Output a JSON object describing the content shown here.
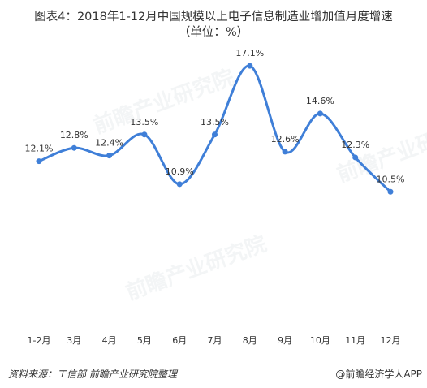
{
  "title_line1": "图表4：2018年1-12月中国规模以上电子信息制造业增加值月度增速",
  "title_line2": "（单位：%）",
  "source": "资料来源：工信部  前瞻产业研究院整理",
  "brand": "@前瞻经济学人APP",
  "watermark": "前瞻产业研究院",
  "colors": {
    "line": "#3f7fd8",
    "text": "#333333"
  },
  "chart_data": {
    "type": "line",
    "categories": [
      "1-2月",
      "3月",
      "4月",
      "5月",
      "6月",
      "7月",
      "8月",
      "9月",
      "10月",
      "11月",
      "12月"
    ],
    "values": [
      12.1,
      12.8,
      12.4,
      13.5,
      10.9,
      13.5,
      17.1,
      12.6,
      14.6,
      12.3,
      10.5
    ],
    "labels": [
      "12.1%",
      "12.8%",
      "12.4%",
      "13.5%",
      "10.9%",
      "13.5%",
      "17.1%",
      "12.6%",
      "14.6%",
      "12.3%",
      "10.5%"
    ],
    "ylim": [
      2,
      18
    ],
    "grid": false,
    "smooth": true
  }
}
